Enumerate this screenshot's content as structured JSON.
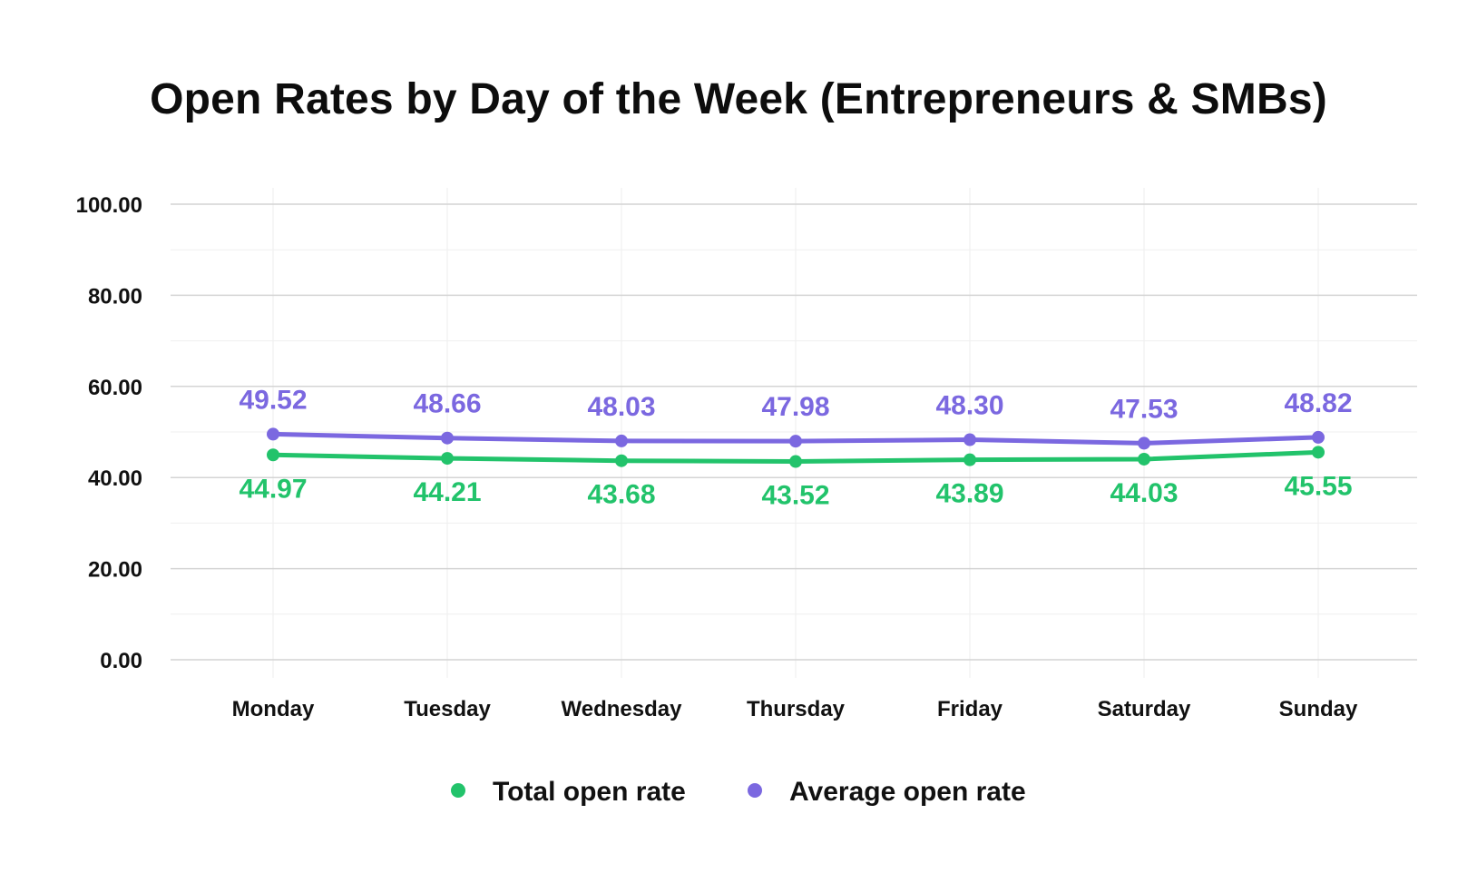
{
  "chart_data": {
    "type": "line",
    "title": "Open Rates by Day of the Week (Entrepreneurs & SMBs)",
    "xlabel": "",
    "ylabel": "",
    "categories": [
      "Monday",
      "Tuesday",
      "Wednesday",
      "Thursday",
      "Friday",
      "Saturday",
      "Sunday"
    ],
    "ylim": [
      0,
      100
    ],
    "yticks": [
      "0.00",
      "20.00",
      "40.00",
      "60.00",
      "80.00",
      "100.00"
    ],
    "grid": true,
    "legend_position": "bottom-center",
    "series": [
      {
        "name": "Total open rate",
        "color": "#22c36b",
        "values": [
          44.97,
          44.21,
          43.68,
          43.52,
          43.89,
          44.03,
          45.55
        ],
        "labels": [
          "44.97",
          "44.21",
          "43.68",
          "43.52",
          "43.89",
          "44.03",
          "45.55"
        ],
        "label_position": "below"
      },
      {
        "name": "Average open rate",
        "color": "#7b68e0",
        "values": [
          49.52,
          48.66,
          48.03,
          47.98,
          48.3,
          47.53,
          48.82
        ],
        "labels": [
          "49.52",
          "48.66",
          "48.03",
          "47.98",
          "48.30",
          "47.53",
          "48.82"
        ],
        "label_position": "above"
      }
    ]
  }
}
